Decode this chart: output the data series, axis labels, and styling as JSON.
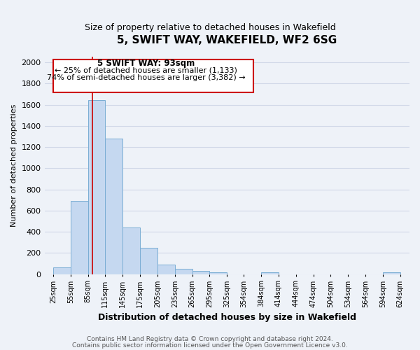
{
  "title": "5, SWIFT WAY, WAKEFIELD, WF2 6SG",
  "subtitle": "Size of property relative to detached houses in Wakefield",
  "xlabel": "Distribution of detached houses by size in Wakefield",
  "ylabel": "Number of detached properties",
  "bar_left_edges": [
    25,
    55,
    85,
    115,
    145,
    175,
    205,
    235,
    265,
    295,
    325,
    354,
    384,
    414,
    444,
    474,
    504,
    534,
    564,
    594
  ],
  "bar_heights": [
    65,
    690,
    1640,
    1280,
    440,
    250,
    90,
    50,
    30,
    20,
    0,
    0,
    15,
    0,
    0,
    0,
    0,
    0,
    0,
    15
  ],
  "bar_widths": [
    30,
    30,
    30,
    30,
    30,
    30,
    30,
    30,
    30,
    30,
    29,
    30,
    30,
    30,
    30,
    30,
    30,
    30,
    30,
    30
  ],
  "bar_color": "#c5d8f0",
  "bar_edge_color": "#7aadd4",
  "tick_labels": [
    "25sqm",
    "55sqm",
    "85sqm",
    "115sqm",
    "145sqm",
    "175sqm",
    "205sqm",
    "235sqm",
    "265sqm",
    "295sqm",
    "325sqm",
    "354sqm",
    "384sqm",
    "414sqm",
    "444sqm",
    "474sqm",
    "504sqm",
    "534sqm",
    "564sqm",
    "594sqm",
    "624sqm"
  ],
  "tick_positions": [
    25,
    55,
    85,
    115,
    145,
    175,
    205,
    235,
    265,
    295,
    325,
    354,
    384,
    414,
    444,
    474,
    504,
    534,
    564,
    594,
    624
  ],
  "xlim": [
    10,
    640
  ],
  "ylim": [
    0,
    2050
  ],
  "yticks": [
    0,
    200,
    400,
    600,
    800,
    1000,
    1200,
    1400,
    1600,
    1800,
    2000
  ],
  "vline_x": 93,
  "vline_color": "#cc0000",
  "annotation_title": "5 SWIFT WAY: 93sqm",
  "annotation_line1": "← 25% of detached houses are smaller (1,133)",
  "annotation_line2": "74% of semi-detached houses are larger (3,382) →",
  "annotation_box_color": "#ffffff",
  "annotation_box_edge": "#cc0000",
  "grid_color": "#d0d8e8",
  "bg_color": "#eef2f8",
  "footer1": "Contains HM Land Registry data © Crown copyright and database right 2024.",
  "footer2": "Contains public sector information licensed under the Open Government Licence v3.0."
}
